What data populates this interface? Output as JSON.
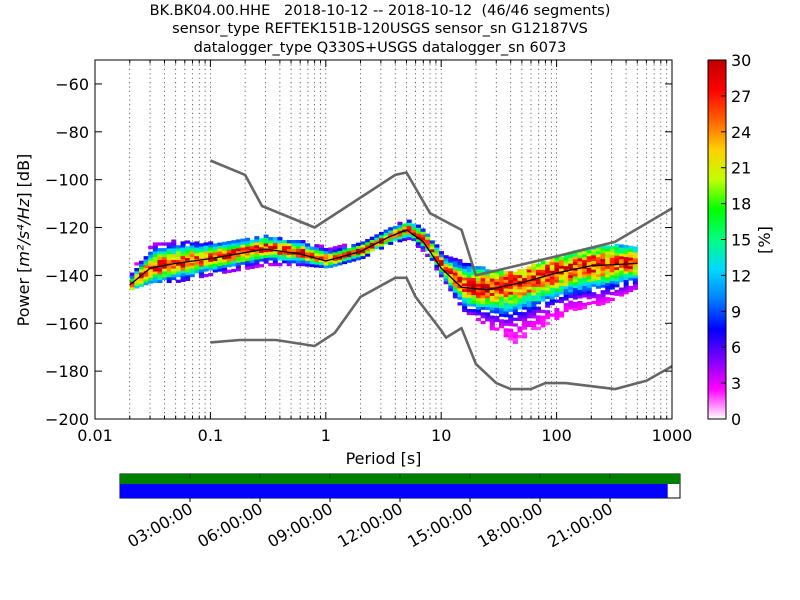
{
  "title_lines": [
    "BK.BK04.00.HHE   2018-10-12 -- 2018-10-12  (46/46 segments)",
    "sensor_type REFTEK151B-120USGS sensor_sn G12187VS",
    "datalogger_type Q330S+USGS datalogger_sn 6073"
  ],
  "chart_data": {
    "type": "heatmap",
    "title": "BK.BK04.00.HHE   2018-10-12 -- 2018-10-12  (46/46 segments)",
    "subtitle": "sensor_type REFTEK151B-120USGS sensor_sn G12187VS / datalogger_type Q330S+USGS datalogger_sn 6073",
    "xlabel": "Period [s]",
    "ylabel_prefix": "Power [",
    "ylabel_units": "m²/s⁴/Hz",
    "ylabel_suffix": "] [dB]",
    "x_scale": "log",
    "xlim": [
      0.01,
      1000
    ],
    "ylim": [
      -200,
      -50
    ],
    "x_ticks": [
      {
        "value": 0.01,
        "label": "0.01"
      },
      {
        "value": 0.1,
        "label": "0.1"
      },
      {
        "value": 1,
        "label": "1"
      },
      {
        "value": 10,
        "label": "10"
      },
      {
        "value": 100,
        "label": "100"
      },
      {
        "value": 1000,
        "label": "1000"
      }
    ],
    "y_ticks": [
      {
        "value": -60,
        "label": "−60"
      },
      {
        "value": -80,
        "label": "−80"
      },
      {
        "value": -100,
        "label": "−100"
      },
      {
        "value": -120,
        "label": "−120"
      },
      {
        "value": -140,
        "label": "−140"
      },
      {
        "value": -160,
        "label": "−160"
      },
      {
        "value": -180,
        "label": "−180"
      },
      {
        "value": -200,
        "label": "−200"
      }
    ],
    "grid": "dotted vertical lines per log decade",
    "colorbar": {
      "label": "[%]",
      "min": 0,
      "max": 30,
      "ticks": [
        "0",
        "3",
        "6",
        "9",
        "12",
        "15",
        "18",
        "21",
        "24",
        "27",
        "30"
      ],
      "colors": [
        "#ffffff",
        "#ff00ff",
        "#7a00ff",
        "#0000ff",
        "#0080ff",
        "#00d8ff",
        "#00ff80",
        "#00ff00",
        "#c0ff00",
        "#ffd000",
        "#ff6000",
        "#ff0000",
        "#c00000"
      ]
    },
    "series": [
      {
        "style": "gray",
        "x": [
          0.1,
          0.2,
          0.28,
          0.8,
          4.0,
          5.0,
          8.0,
          15.0,
          20.0,
          100.0,
          320.0,
          1000.0
        ],
        "y": [
          -92,
          -98,
          -111,
          -120,
          -98,
          -97,
          -114,
          -121,
          -140,
          -132,
          -126,
          -112
        ]
      },
      {
        "style": "gray",
        "x": [
          0.1,
          0.18,
          0.37,
          0.8,
          1.2,
          2.0,
          4.0,
          5.0,
          6.0,
          10.0,
          11.0,
          15.0,
          20.0,
          30.0,
          40.0,
          60.0,
          80.0,
          120.0,
          320.0,
          600.0,
          1000.0
        ],
        "y": [
          -168,
          -167,
          -167,
          -169.5,
          -164,
          -149,
          -141,
          -141,
          -149,
          -163,
          -166,
          -162,
          -177,
          -185,
          -187.5,
          -187.5,
          -185,
          -185,
          -187.5,
          -184,
          -178
        ]
      },
      {
        "style": "black",
        "x": [
          0.02,
          0.03,
          0.05,
          0.1,
          0.3,
          0.6,
          1.0,
          2.0,
          3.5,
          5.0,
          7.0,
          10.0,
          15.0,
          25.0,
          50.0,
          100.0,
          200.0,
          500.0
        ],
        "y": [
          -144,
          -137,
          -135,
          -133,
          -129,
          -131,
          -134,
          -130,
          -124,
          -121,
          -126,
          -137,
          -145,
          -146,
          -143,
          -139,
          -136,
          -135
        ]
      }
    ],
    "psd_heat_ranges": [
      {
        "x": 0.02,
        "ylo": -146,
        "yhi": -138
      },
      {
        "x": 0.03,
        "ylo": -143,
        "yhi": -127
      },
      {
        "x": 0.05,
        "ylo": -143,
        "yhi": -126
      },
      {
        "x": 0.1,
        "ylo": -140,
        "yhi": -127
      },
      {
        "x": 0.3,
        "ylo": -136,
        "yhi": -124
      },
      {
        "x": 0.6,
        "ylo": -136,
        "yhi": -126
      },
      {
        "x": 1.0,
        "ylo": -137,
        "yhi": -129
      },
      {
        "x": 2.0,
        "ylo": -133,
        "yhi": -126
      },
      {
        "x": 3.5,
        "ylo": -127,
        "yhi": -120
      },
      {
        "x": 5.0,
        "ylo": -125,
        "yhi": -117
      },
      {
        "x": 7.0,
        "ylo": -131,
        "yhi": -122
      },
      {
        "x": 10.0,
        "ylo": -142,
        "yhi": -132
      },
      {
        "x": 15.0,
        "ylo": -155,
        "yhi": -135
      },
      {
        "x": 25.0,
        "ylo": -162,
        "yhi": -138
      },
      {
        "x": 40.0,
        "ylo": -169,
        "yhi": -139
      },
      {
        "x": 70.0,
        "ylo": -162,
        "yhi": -135
      },
      {
        "x": 130.0,
        "ylo": -155,
        "yhi": -131
      },
      {
        "x": 250.0,
        "ylo": -152,
        "yhi": -128
      },
      {
        "x": 500.0,
        "ylo": -145,
        "yhi": -128
      }
    ]
  },
  "timeline": {
    "ticks": [
      "03:00:00",
      "06:00:00",
      "09:00:00",
      "12:00:00",
      "15:00:00",
      "18:00:00",
      "21:00:00"
    ],
    "coverage_color": "#0000ff",
    "data_color": "#008000",
    "coverage_fraction": 0.978
  }
}
